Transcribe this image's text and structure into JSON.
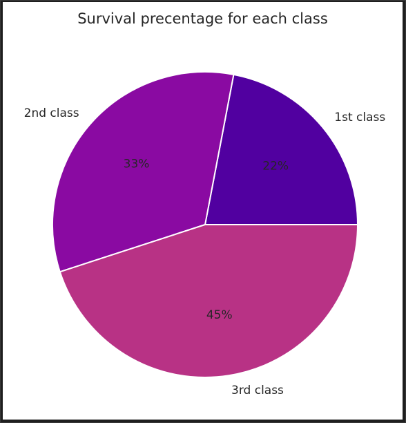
{
  "chart_data": {
    "type": "pie",
    "title": "Survival precentage for each class",
    "categories": [
      "1st class",
      "2nd class",
      "3rd class"
    ],
    "values": [
      22,
      33,
      45
    ],
    "value_labels": [
      "22%",
      "33%",
      "45%"
    ],
    "colors": [
      "#5100a0",
      "#8a0aa2",
      "#b83285"
    ],
    "start_angle_deg": 0,
    "direction": "counterclockwise",
    "edge_color": "#ffffff"
  }
}
